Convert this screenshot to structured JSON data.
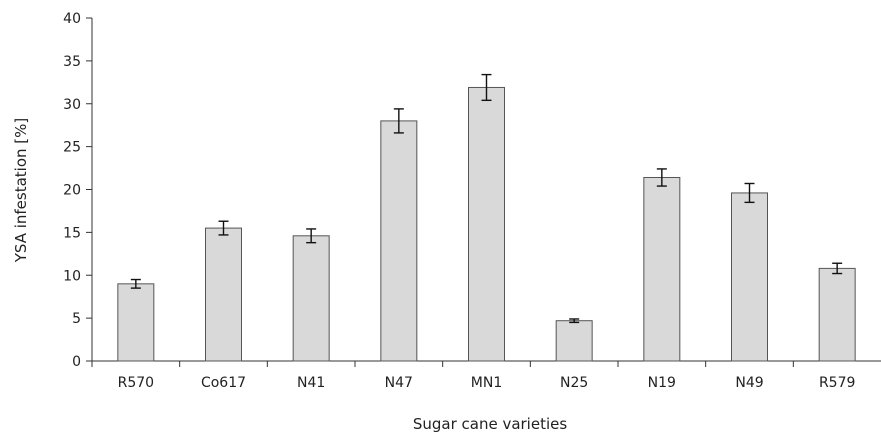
{
  "chart_data": {
    "type": "bar",
    "title": "",
    "xlabel": "Sugar cane varieties",
    "ylabel": "YSA infestation [%]",
    "ylim": [
      0,
      40
    ],
    "yticks": [
      0,
      5,
      10,
      15,
      20,
      25,
      30,
      35,
      40
    ],
    "grid": false,
    "categories": [
      "R570",
      "Co617",
      "N41",
      "N47",
      "MN1",
      "N25",
      "N19",
      "N49",
      "R579"
    ],
    "values": [
      9.0,
      15.5,
      14.6,
      28.0,
      31.9,
      4.7,
      21.4,
      19.6,
      10.8
    ],
    "errors": [
      0.5,
      0.8,
      0.8,
      1.4,
      1.5,
      0.2,
      1.0,
      1.1,
      0.6
    ],
    "colors": {
      "bar_fill": "#d9d9d9",
      "bar_stroke": "#555555",
      "axis": "#333333"
    }
  }
}
